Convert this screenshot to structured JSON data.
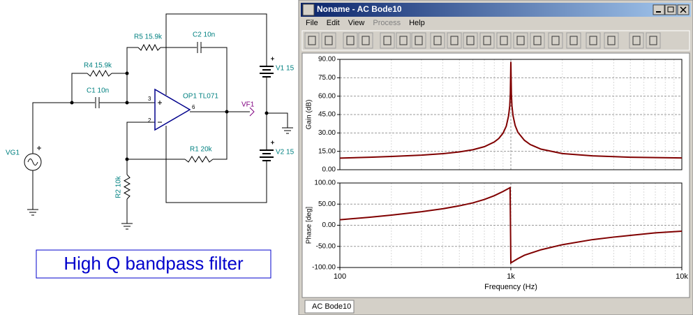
{
  "schematic": {
    "components": [
      "VG1",
      "C1 10n",
      "R4 15.9k",
      "R5 15.9k",
      "C2 10n",
      "OP1 TL071",
      "VF1",
      "V1 15",
      "V2 15",
      "R1 20k",
      "R2 10k"
    ],
    "pins": [
      "3",
      "2",
      "6"
    ],
    "caption": "High Q bandpass filter"
  },
  "window": {
    "title": "Noname - AC Bode10",
    "menu": [
      "File",
      "Edit",
      "View",
      "Process",
      "Help"
    ],
    "tab": "AC Bode10"
  },
  "chart_data": [
    {
      "type": "line",
      "ylabel": "Gain (dB)",
      "log_x": true,
      "grid": true,
      "color": "#800000",
      "x": [
        100,
        150,
        200,
        300,
        400,
        500,
        600,
        700,
        800,
        850,
        900,
        940,
        970,
        985,
        993,
        1000,
        1007,
        1015,
        1030,
        1060,
        1100,
        1200,
        1300,
        1500,
        2000,
        3000,
        5000,
        10000
      ],
      "values": [
        9.5,
        10.2,
        10.8,
        11.9,
        13.1,
        14.5,
        16.3,
        18.8,
        22.6,
        25.5,
        29.8,
        35.5,
        44,
        52,
        62,
        88,
        62,
        52,
        44,
        36,
        30.5,
        24,
        20.5,
        16.8,
        13.2,
        11.3,
        10.2,
        9.6
      ],
      "xlim": [
        100,
        10000
      ],
      "xticks": [
        100,
        1000,
        10000
      ],
      "ylim": [
        0,
        90
      ],
      "yticks": [
        {
          "value": 0,
          "label": "0.00"
        },
        {
          "value": 15,
          "label": "15.00"
        },
        {
          "value": 30,
          "label": "30.00"
        },
        {
          "value": 45,
          "label": "45.00"
        },
        {
          "value": 60,
          "label": "60.00"
        },
        {
          "value": 75,
          "label": "75.00"
        },
        {
          "value": 90,
          "label": "90.00"
        }
      ]
    },
    {
      "type": "line",
      "ylabel": "Phase [deg]",
      "xlabel": "Frequency (Hz)",
      "log_x": true,
      "grid": true,
      "color": "#800000",
      "x": [
        100,
        150,
        200,
        300,
        400,
        500,
        600,
        700,
        800,
        900,
        990,
        1000,
        1100,
        1200,
        1500,
        2000,
        3000,
        4000,
        5000,
        7000,
        10000
      ],
      "values": [
        13,
        19,
        24,
        32,
        39,
        46,
        53,
        61,
        70,
        80,
        89,
        -89,
        -79,
        -71,
        -58,
        -46,
        -34,
        -28,
        -24,
        -18,
        -14
      ],
      "xlim": [
        100,
        10000
      ],
      "xticks": [
        100,
        {
          "value": 1000,
          "label": "1k"
        },
        {
          "value": 10000,
          "label": "10k"
        }
      ],
      "ylim": [
        -100,
        100
      ],
      "yticks": [
        {
          "value": -100,
          "label": "-100.00"
        },
        {
          "value": -50,
          "label": "-50.00"
        },
        {
          "value": 0,
          "label": "0.00"
        },
        {
          "value": 50,
          "label": "50.00"
        },
        {
          "value": 100,
          "label": "100.00"
        }
      ]
    }
  ]
}
